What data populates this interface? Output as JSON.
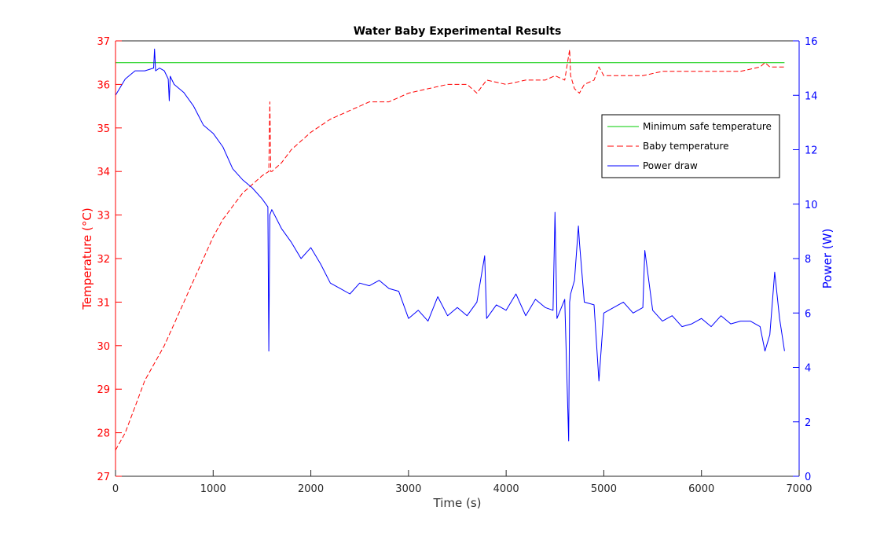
{
  "chart_data": {
    "type": "line",
    "title": "Water Baby Experimental Results",
    "xlabel": "Time (s)",
    "ylabel_left": "Temperature (°C)",
    "ylabel_right": "Power (W)",
    "xlim": [
      0,
      7000
    ],
    "ylim_left": [
      27,
      37
    ],
    "ylim_right": [
      0,
      16
    ],
    "x_ticks": [
      "0",
      "1000",
      "2000",
      "3000",
      "4000",
      "5000",
      "6000",
      "7000"
    ],
    "y_left_ticks": [
      "27",
      "28",
      "29",
      "30",
      "31",
      "32",
      "33",
      "34",
      "35",
      "36",
      "37"
    ],
    "y_right_ticks": [
      "0",
      "2",
      "4",
      "6",
      "8",
      "10",
      "12",
      "14",
      "16"
    ],
    "grid": false,
    "legend_position": "top-right",
    "colors": {
      "temperature_axis": "#ff0000",
      "power_axis": "#0000ff",
      "min_safe": "#00cc00",
      "baby_temp": "#ff0000",
      "power": "#0000ff"
    },
    "series": [
      {
        "name": "Minimum safe temperature",
        "axis": "left",
        "style": "solid",
        "color": "#00cc00",
        "x": [
          0,
          6850
        ],
        "y": [
          36.5,
          36.5
        ]
      },
      {
        "name": "Baby temperature",
        "axis": "left",
        "style": "dashed",
        "color": "#ff0000",
        "x": [
          0,
          100,
          200,
          300,
          400,
          500,
          600,
          700,
          800,
          900,
          1000,
          1100,
          1200,
          1300,
          1400,
          1500,
          1570,
          1580,
          1590,
          1600,
          1700,
          1800,
          1900,
          2000,
          2200,
          2400,
          2600,
          2800,
          3000,
          3200,
          3400,
          3600,
          3700,
          3800,
          4000,
          4200,
          4400,
          4500,
          4600,
          4650,
          4660,
          4700,
          4750,
          4800,
          4900,
          4950,
          5000,
          5200,
          5400,
          5600,
          5800,
          6000,
          6200,
          6400,
          6600,
          6650,
          6700,
          6800,
          6850
        ],
        "y": [
          27.6,
          28.0,
          28.6,
          29.2,
          29.6,
          30.0,
          30.5,
          31.0,
          31.5,
          32.0,
          32.5,
          32.9,
          33.2,
          33.5,
          33.7,
          33.9,
          34.0,
          35.6,
          34.0,
          34.0,
          34.2,
          34.5,
          34.7,
          34.9,
          35.2,
          35.4,
          35.6,
          35.6,
          35.8,
          35.9,
          36.0,
          36.0,
          35.8,
          36.1,
          36.0,
          36.1,
          36.1,
          36.2,
          36.1,
          36.8,
          36.2,
          35.9,
          35.8,
          36.0,
          36.1,
          36.4,
          36.2,
          36.2,
          36.2,
          36.3,
          36.3,
          36.3,
          36.3,
          36.3,
          36.4,
          36.5,
          36.4,
          36.4,
          36.4
        ]
      },
      {
        "name": "Power draw",
        "axis": "right",
        "style": "solid",
        "color": "#0000ff",
        "x": [
          0,
          50,
          100,
          200,
          300,
          390,
          400,
          410,
          450,
          500,
          540,
          550,
          560,
          600,
          700,
          800,
          900,
          1000,
          1100,
          1200,
          1300,
          1400,
          1500,
          1560,
          1570,
          1580,
          1600,
          1700,
          1800,
          1900,
          2000,
          2100,
          2200,
          2300,
          2400,
          2500,
          2600,
          2700,
          2800,
          2900,
          3000,
          3100,
          3200,
          3300,
          3400,
          3500,
          3600,
          3700,
          3780,
          3800,
          3900,
          4000,
          4100,
          4200,
          4300,
          4400,
          4480,
          4500,
          4520,
          4600,
          4640,
          4650,
          4660,
          4700,
          4740,
          4750,
          4800,
          4900,
          4950,
          5000,
          5100,
          5200,
          5300,
          5400,
          5420,
          5500,
          5600,
          5700,
          5800,
          5900,
          6000,
          6100,
          6200,
          6300,
          6400,
          6500,
          6600,
          6650,
          6700,
          6750,
          6800,
          6850
        ],
        "y": [
          14.0,
          14.3,
          14.6,
          14.9,
          14.9,
          15.0,
          15.7,
          14.9,
          15.0,
          14.9,
          14.6,
          13.8,
          14.7,
          14.4,
          14.1,
          13.6,
          12.9,
          12.6,
          12.1,
          11.3,
          10.9,
          10.6,
          10.2,
          9.9,
          4.6,
          9.6,
          9.8,
          9.1,
          8.6,
          8.0,
          8.4,
          7.8,
          7.1,
          6.9,
          6.7,
          7.1,
          7.0,
          7.2,
          6.9,
          6.8,
          5.8,
          6.1,
          5.7,
          6.6,
          5.9,
          6.2,
          5.9,
          6.4,
          8.1,
          5.8,
          6.3,
          6.1,
          6.7,
          5.9,
          6.5,
          6.2,
          6.1,
          9.7,
          5.8,
          6.5,
          1.3,
          6.4,
          6.7,
          7.2,
          9.2,
          8.6,
          6.4,
          6.3,
          3.5,
          6.0,
          6.2,
          6.4,
          6.0,
          6.2,
          8.3,
          6.1,
          5.7,
          5.9,
          5.5,
          5.6,
          5.8,
          5.5,
          5.9,
          5.6,
          5.7,
          5.7,
          5.5,
          4.6,
          5.2,
          7.5,
          5.8,
          4.6
        ]
      }
    ]
  }
}
